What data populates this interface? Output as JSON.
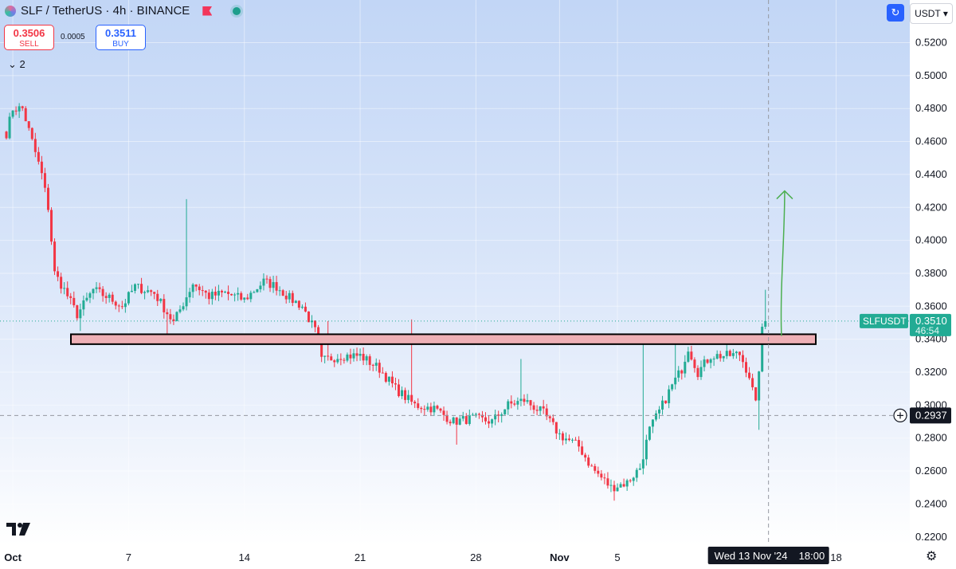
{
  "header": {
    "symbol": "SLF / TetherUS · 4h · BINANCE",
    "sell_price": "0.3506",
    "sell_label": "SELL",
    "spread": "0.0005",
    "buy_price": "0.3511",
    "buy_label": "BUY",
    "indicator_count": "2",
    "currency": "USDT"
  },
  "chart_data": {
    "type": "candlestick",
    "ylim": [
      0.21,
      0.53
    ],
    "y_ticks": [
      "0.5200",
      "0.5000",
      "0.4800",
      "0.4600",
      "0.4400",
      "0.4200",
      "0.4000",
      "0.3800",
      "0.3600",
      "0.3400",
      "0.3200",
      "0.3000",
      "0.2800",
      "0.2600",
      "0.2400",
      "0.2200"
    ],
    "x_ticks": [
      "Oct",
      "7",
      "14",
      "21",
      "28",
      "Nov",
      "5",
      "18"
    ],
    "x_tick_index": [
      2,
      38,
      74,
      110,
      146,
      172,
      190,
      258
    ],
    "anchors": [
      [
        0,
        0.465
      ],
      [
        2,
        0.48
      ],
      [
        5,
        0.48
      ],
      [
        8,
        0.46
      ],
      [
        11,
        0.44
      ],
      [
        13,
        0.42
      ],
      [
        15,
        0.38
      ],
      [
        18,
        0.37
      ],
      [
        22,
        0.355
      ],
      [
        27,
        0.37
      ],
      [
        32,
        0.365
      ],
      [
        36,
        0.36
      ],
      [
        40,
        0.372
      ],
      [
        46,
        0.368
      ],
      [
        52,
        0.35
      ],
      [
        58,
        0.374
      ],
      [
        63,
        0.366
      ],
      [
        68,
        0.368
      ],
      [
        74,
        0.364
      ],
      [
        80,
        0.375
      ],
      [
        84,
        0.372
      ],
      [
        88,
        0.365
      ],
      [
        92,
        0.36
      ],
      [
        96,
        0.345
      ],
      [
        98,
        0.327
      ],
      [
        104,
        0.33
      ],
      [
        110,
        0.33
      ],
      [
        116,
        0.322
      ],
      [
        121,
        0.31
      ],
      [
        127,
        0.3
      ],
      [
        133,
        0.298
      ],
      [
        139,
        0.29
      ],
      [
        145,
        0.292
      ],
      [
        151,
        0.29
      ],
      [
        156,
        0.3
      ],
      [
        161,
        0.303
      ],
      [
        167,
        0.295
      ],
      [
        172,
        0.282
      ],
      [
        178,
        0.275
      ],
      [
        182,
        0.262
      ],
      [
        188,
        0.25
      ],
      [
        193,
        0.253
      ],
      [
        197,
        0.262
      ],
      [
        200,
        0.285
      ],
      [
        204,
        0.3
      ],
      [
        207,
        0.312
      ],
      [
        210,
        0.322
      ],
      [
        212,
        0.335
      ],
      [
        215,
        0.32
      ],
      [
        219,
        0.33
      ],
      [
        224,
        0.33
      ],
      [
        228,
        0.331
      ],
      [
        231,
        0.318
      ],
      [
        233,
        0.3
      ],
      [
        235,
        0.345
      ],
      [
        236,
        0.351
      ]
    ],
    "spikes": [
      [
        56,
        0.425
      ],
      [
        100,
        0.351
      ],
      [
        126,
        0.352
      ],
      [
        160,
        0.328
      ],
      [
        198,
        0.339
      ],
      [
        208,
        0.34
      ],
      [
        224,
        0.34
      ],
      [
        236,
        0.37
      ]
    ],
    "dips": [
      [
        23,
        0.345
      ],
      [
        50,
        0.342
      ],
      [
        140,
        0.276
      ],
      [
        189,
        0.242
      ],
      [
        234,
        0.285
      ]
    ],
    "candle_count": 237,
    "candle_step_px": 4.037,
    "support_zone": {
      "low": 0.337,
      "high": 0.343
    },
    "target_arrow": {
      "from": [
        241,
        0.342
      ],
      "to": [
        241,
        0.43
      ]
    },
    "last_price": {
      "label": "SLFUSDT",
      "value": "0.3510",
      "countdown": "46:54",
      "v": 0.351
    },
    "crosshair": {
      "price": "0.2937",
      "v": 0.2937,
      "time_label": "Wed 13 Nov '24",
      "time": "18:00",
      "index": 234
    },
    "colors": {
      "up": "#22ab94",
      "down": "#f23645",
      "zone_fill": "#eeb0b6",
      "arrow": "#4caf50",
      "tag_bg": "#22ab94"
    }
  }
}
